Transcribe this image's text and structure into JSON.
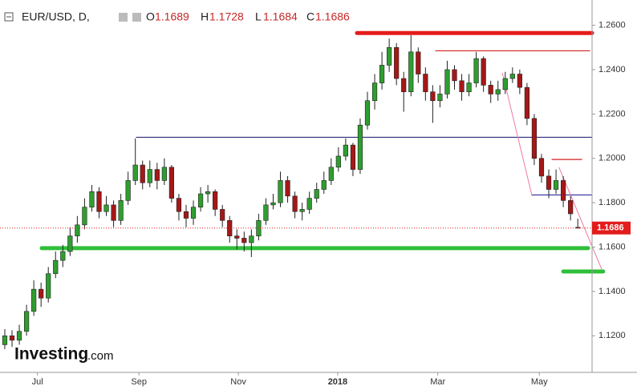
{
  "chart_data": {
    "type": "candlestick",
    "title": "EUR/USD, D,",
    "ohlc_labels": [
      "O",
      "H",
      "L",
      "C"
    ],
    "watermark": [
      "Investing",
      ".com"
    ],
    "up_color": "#2f9e2f",
    "down_color": "#a61717",
    "xlim": [
      -0.66,
      80.97
    ],
    "xticks": [
      {
        "value": 4.5,
        "label": "Jul"
      },
      {
        "value": 18.5,
        "label": "Sep"
      },
      {
        "value": 32.2,
        "label": "Nov"
      },
      {
        "value": 45.9,
        "label": "2018"
      },
      {
        "value": 59.7,
        "label": "Mar"
      },
      {
        "value": 73.7,
        "label": "May"
      }
    ],
    "ylim": [
      1.1035,
      1.2714
    ],
    "yticks": [
      {
        "value": 1.12,
        "label": "1.1200"
      },
      {
        "value": 1.14,
        "label": "1.1400"
      },
      {
        "value": 1.16,
        "label": "1.1600"
      },
      {
        "value": 1.18,
        "label": "1.1800"
      },
      {
        "value": 1.2,
        "label": "1.2000"
      },
      {
        "value": 1.22,
        "label": "1.2200"
      },
      {
        "value": 1.24,
        "label": "1.2400"
      },
      {
        "value": 1.26,
        "label": "1.2600"
      }
    ],
    "open": [
      1.116,
      1.12,
      1.118,
      1.122,
      1.131,
      1.141,
      1.137,
      1.148,
      1.154,
      1.158,
      1.165,
      1.17,
      1.178,
      1.185,
      1.176,
      1.179,
      1.172,
      1.181,
      1.19,
      1.197,
      1.189,
      1.195,
      1.19,
      1.196,
      1.182,
      1.176,
      1.173,
      1.178,
      1.184,
      1.185,
      1.177,
      1.172,
      1.165,
      1.164,
      1.162,
      1.165,
      1.172,
      1.179,
      1.18,
      1.19,
      1.183,
      1.176,
      1.177,
      1.182,
      1.186,
      1.19,
      1.196,
      1.201,
      1.206,
      1.195,
      1.215,
      1.226,
      1.234,
      1.242,
      1.25,
      1.236,
      1.23,
      1.248,
      1.238,
      1.23,
      1.226,
      1.229,
      1.24,
      1.235,
      1.23,
      1.234,
      1.245,
      1.233,
      1.229,
      1.231,
      1.236,
      1.238,
      1.232,
      1.218,
      1.2,
      1.192,
      1.186,
      1.19,
      1.181,
      1.1689
    ],
    "high": [
      1.123,
      1.1225,
      1.125,
      1.134,
      1.145,
      1.144,
      1.151,
      1.158,
      1.161,
      1.169,
      1.174,
      1.182,
      1.188,
      1.187,
      1.183,
      1.181,
      1.184,
      1.194,
      1.209,
      1.199,
      1.199,
      1.198,
      1.2,
      1.197,
      1.184,
      1.179,
      1.181,
      1.187,
      1.188,
      1.186,
      1.179,
      1.174,
      1.168,
      1.167,
      1.168,
      1.175,
      1.182,
      1.184,
      1.194,
      1.192,
      1.185,
      1.18,
      1.185,
      1.189,
      1.194,
      1.2,
      1.205,
      1.209,
      1.207,
      1.218,
      1.23,
      1.238,
      1.248,
      1.254,
      1.252,
      1.239,
      1.2555,
      1.25,
      1.241,
      1.233,
      1.233,
      1.244,
      1.242,
      1.238,
      1.238,
      1.248,
      1.246,
      1.235,
      1.235,
      1.239,
      1.241,
      1.24,
      1.234,
      1.22,
      1.202,
      1.195,
      1.195,
      1.192,
      1.183,
      1.1728
    ],
    "low": [
      1.114,
      1.115,
      1.116,
      1.12,
      1.129,
      1.133,
      1.135,
      1.146,
      1.151,
      1.156,
      1.162,
      1.168,
      1.176,
      1.173,
      1.174,
      1.169,
      1.17,
      1.179,
      1.188,
      1.186,
      1.187,
      1.186,
      1.188,
      1.18,
      1.172,
      1.169,
      1.17,
      1.176,
      1.18,
      1.174,
      1.169,
      1.162,
      1.159,
      1.158,
      1.1555,
      1.163,
      1.17,
      1.177,
      1.178,
      1.18,
      1.173,
      1.172,
      1.175,
      1.18,
      1.184,
      1.188,
      1.194,
      1.199,
      1.192,
      1.193,
      1.213,
      1.222,
      1.231,
      1.239,
      1.233,
      1.221,
      1.228,
      1.234,
      1.226,
      1.216,
      1.223,
      1.227,
      1.231,
      1.226,
      1.228,
      1.232,
      1.23,
      1.225,
      1.226,
      1.229,
      1.234,
      1.229,
      1.215,
      1.197,
      1.189,
      1.182,
      1.184,
      1.178,
      1.172,
      1.1684
    ],
    "close": [
      1.12,
      1.118,
      1.122,
      1.131,
      1.141,
      1.137,
      1.148,
      1.154,
      1.158,
      1.165,
      1.17,
      1.178,
      1.185,
      1.176,
      1.179,
      1.172,
      1.181,
      1.19,
      1.197,
      1.189,
      1.195,
      1.19,
      1.196,
      1.182,
      1.176,
      1.173,
      1.178,
      1.184,
      1.185,
      1.177,
      1.172,
      1.165,
      1.164,
      1.162,
      1.165,
      1.172,
      1.179,
      1.18,
      1.19,
      1.183,
      1.176,
      1.177,
      1.182,
      1.186,
      1.19,
      1.196,
      1.201,
      1.206,
      1.195,
      1.215,
      1.226,
      1.234,
      1.242,
      1.25,
      1.236,
      1.23,
      1.248,
      1.238,
      1.23,
      1.226,
      1.229,
      1.24,
      1.235,
      1.23,
      1.234,
      1.245,
      1.233,
      1.229,
      1.231,
      1.236,
      1.238,
      1.232,
      1.218,
      1.2,
      1.192,
      1.186,
      1.19,
      1.181,
      1.175,
      1.1686
    ],
    "levels": [
      {
        "value": 1.2565,
        "from": 48.56,
        "to": 80.97,
        "color": "#e31c1c",
        "style": "thick"
      },
      {
        "value": 1.2485,
        "from": 59.4,
        "to": 80.64,
        "color": "#d32020",
        "style": "thin"
      },
      {
        "value": 1.2095,
        "from": 18.14,
        "to": 80.97,
        "color": "#2b2b7a",
        "style": "thin"
      },
      {
        "value": 1.1995,
        "from": 75.44,
        "to": 79.54,
        "color": "#d32020",
        "style": "thin"
      },
      {
        "value": 1.1835,
        "from": 72.68,
        "to": 80.86,
        "color": "#2b2b9a",
        "style": "thin"
      },
      {
        "value": 1.1595,
        "from": 5.09,
        "to": 80.42,
        "color": "#2fbf3a",
        "style": "thick"
      },
      {
        "value": 1.149,
        "from": 77.0,
        "to": 82.5,
        "color": "#2fbf3a",
        "style": "thick"
      }
    ],
    "trendlines": [
      {
        "x": [
          68.6,
          72.7
        ],
        "y": [
          1.2385,
          1.183
        ],
        "color": "#f07aa0"
      },
      {
        "x": [
          76.4,
          82.3
        ],
        "y": [
          1.196,
          1.15
        ],
        "color": "#f07aa0"
      }
    ],
    "price_color": "#e31c1c"
  }
}
